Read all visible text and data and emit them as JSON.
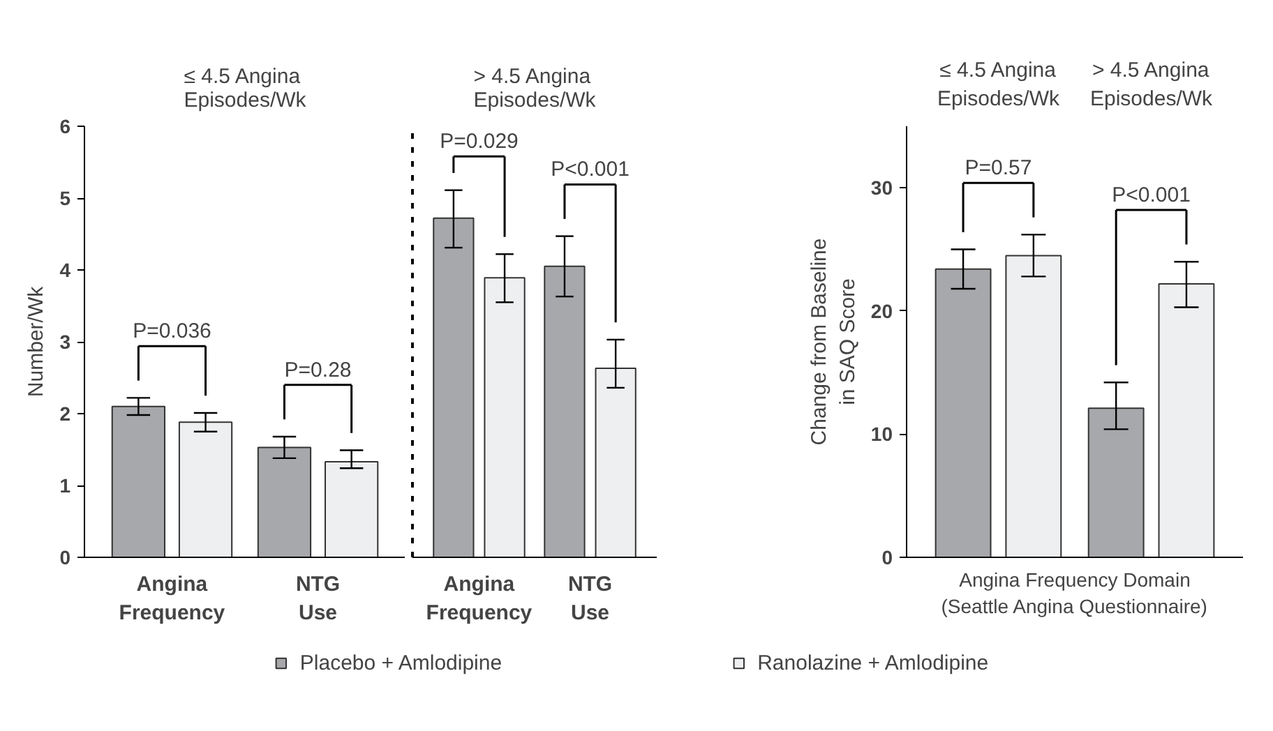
{
  "chart_data": [
    {
      "type": "bar",
      "title": "≤ 4.5 Angina Episodes/Wk",
      "ylabel": "Number/Wk",
      "categories": [
        "Angina Frequency",
        "NTG Use"
      ],
      "series": [
        {
          "name": "Placebo + Amlodipine",
          "color": "#a7a8ab",
          "values": [
            2.1,
            1.53
          ],
          "errors": [
            [
              1.98,
              2.22
            ],
            [
              1.38,
              1.68
            ]
          ]
        },
        {
          "name": "Ranolazine + Amlodipine",
          "color": "#eeeff0",
          "values": [
            1.88,
            1.33
          ],
          "errors": [
            [
              1.75,
              2.01
            ],
            [
              1.24,
              1.49
            ]
          ]
        }
      ],
      "ylim": [
        0,
        6
      ],
      "yticks": [
        0,
        1,
        2,
        3,
        4,
        5,
        6
      ],
      "grid": false,
      "legend": "bottom",
      "annotations": [
        "P=0.036",
        "P=0.28"
      ]
    },
    {
      "type": "bar",
      "title": "> 4.5 Angina Episodes/Wk",
      "categories": [
        "Angina Frequency",
        "NTG Use"
      ],
      "series": [
        {
          "color": "#a7a8ab",
          "values": [
            4.72,
            4.05
          ],
          "errors": [
            [
              4.31,
              5.11
            ],
            [
              3.63,
              4.47
            ]
          ]
        },
        {
          "color": "#eeeff0",
          "values": [
            3.89,
            2.63
          ],
          "errors": [
            [
              3.55,
              4.22
            ],
            [
              2.36,
              3.03
            ]
          ]
        }
      ],
      "ylim": [
        0,
        6
      ],
      "yticks": [
        0,
        1,
        2,
        3,
        4,
        5,
        6
      ],
      "grid": false,
      "tick_labels": "x",
      "annotations": [
        "P=0.029",
        "P<0.001"
      ]
    },
    {
      "type": "bar",
      "xlabel": "Angina Frequency Domain (Seattle Angina Questionnaire)",
      "ylabel": "Change from Baseline in SAQ Score",
      "categories": [
        "≤ 4.5 Angina Episodes/Wk",
        "> 4.5 Angina Episodes/Wk"
      ],
      "series": [
        {
          "color": "#a7a8ab",
          "values": [
            23.4,
            12.1
          ],
          "errors": [
            [
              21.8,
              25.0
            ],
            [
              10.4,
              14.2
            ]
          ]
        },
        {
          "color": "#eeeff0",
          "values": [
            24.5,
            22.2
          ],
          "errors": [
            [
              22.8,
              26.2
            ],
            [
              20.3,
              24.0
            ]
          ]
        }
      ],
      "ylim": [
        0,
        35
      ],
      "yticks": [
        0,
        10,
        20,
        30
      ],
      "grid": false,
      "annotations": [
        "P=0.57",
        "P<0.001"
      ]
    }
  ]
}
